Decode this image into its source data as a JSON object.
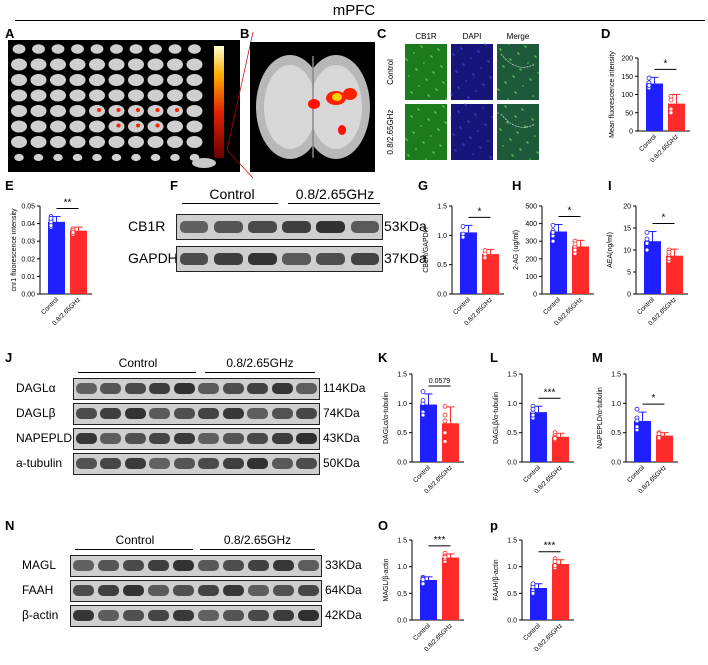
{
  "figure_title": "mPFC",
  "panels": {
    "A": "A",
    "B": "B",
    "C": "C",
    "D": "D",
    "E": "E",
    "F": "F",
    "G": "G",
    "H": "H",
    "I": "I",
    "J": "J",
    "K": "K",
    "L": "L",
    "M": "M",
    "N": "N",
    "O": "O",
    "P": "p"
  },
  "panel_c": {
    "col_headers": [
      "CB1R",
      "DAPI",
      "Merge"
    ],
    "row_labels": [
      "Control",
      "0.8/2.65GHz"
    ]
  },
  "blot_f": {
    "groups": [
      "Control",
      "0.8/2.65GHz"
    ],
    "rows": [
      {
        "label": "CB1R",
        "kda": "53KDa"
      },
      {
        "label": "GAPDH",
        "kda": "37KDa"
      }
    ]
  },
  "blot_j": {
    "groups": [
      "Control",
      "0.8/2.65GHz"
    ],
    "rows": [
      {
        "label": "DAGLα",
        "kda": "114KDa"
      },
      {
        "label": "DAGLβ",
        "kda": "74KDa"
      },
      {
        "label": "NAPEPLD",
        "kda": "43KDa"
      },
      {
        "label": "a-tubulin",
        "kda": "50KDa"
      }
    ]
  },
  "blot_n": {
    "groups": [
      "Control",
      "0.8/2.65GHz"
    ],
    "rows": [
      {
        "label": "MAGL",
        "kda": "33KDa"
      },
      {
        "label": "FAAH",
        "kda": "64KDa"
      },
      {
        "label": "β-actin",
        "kda": "42KDa"
      }
    ]
  },
  "colors": {
    "control": "#1f1fff",
    "treated": "#ff2a2a"
  },
  "chart_data": [
    {
      "id": "D",
      "type": "bar",
      "categories": [
        "Control",
        "0.8/2.65GHz"
      ],
      "values": [
        130,
        75
      ],
      "errors": [
        17,
        25
      ],
      "ylabel": "Mean fluorescence intensity",
      "ylim": [
        0,
        200
      ],
      "yticks": [
        0,
        50,
        100,
        150,
        200
      ],
      "significance": "*",
      "points": [
        [
          145,
          132,
          118,
          125
        ],
        [
          95,
          60,
          50,
          85
        ]
      ]
    },
    {
      "id": "E",
      "type": "bar",
      "categories": [
        "Control",
        "0.8/2.65GHz"
      ],
      "values": [
        0.041,
        0.036
      ],
      "errors": [
        0.003,
        0.002
      ],
      "ylabel": "cnr1 fluorescence intensity",
      "ylim": [
        0,
        0.05
      ],
      "yticks": [
        0.0,
        0.01,
        0.02,
        0.03,
        0.04,
        0.05
      ],
      "significance": "**",
      "points": [
        [
          0.044,
          0.04,
          0.038,
          0.042,
          0.039,
          0.041,
          0.043
        ],
        [
          0.037,
          0.035,
          0.036,
          0.034,
          0.037,
          0.036,
          0.035
        ]
      ]
    },
    {
      "id": "G",
      "type": "bar",
      "categories": [
        "Control",
        "0.8/2.65GHz"
      ],
      "values": [
        1.05,
        0.68
      ],
      "errors": [
        0.12,
        0.08
      ],
      "ylabel": "CB1R/GAPDH",
      "ylim": [
        0,
        1.5
      ],
      "yticks": [
        0.0,
        0.5,
        1.0,
        1.5
      ],
      "significance": "*",
      "points": [
        [
          1.15,
          1.02,
          0.97
        ],
        [
          0.74,
          0.62,
          0.68
        ]
      ]
    },
    {
      "id": "H",
      "type": "bar",
      "categories": [
        "Control",
        "0.8/2.65GHz"
      ],
      "values": [
        355,
        270
      ],
      "errors": [
        40,
        35
      ],
      "ylabel": "2-AG (ug/ml)",
      "ylim": [
        0,
        500
      ],
      "yticks": [
        0,
        100,
        200,
        300,
        400,
        500
      ],
      "significance": "*",
      "points": [
        [
          390,
          360,
          330,
          350,
          300
        ],
        [
          300,
          270,
          230,
          285,
          250
        ]
      ]
    },
    {
      "id": "I",
      "type": "bar",
      "categories": [
        "Control",
        "0.8/2.65GHz"
      ],
      "values": [
        12,
        8.7
      ],
      "errors": [
        2.2,
        1.5
      ],
      "ylabel": "AEA(ng/ml)",
      "ylim": [
        0,
        20
      ],
      "yticks": [
        0,
        5,
        10,
        15,
        20
      ],
      "significance": "*",
      "points": [
        [
          14,
          12,
          10,
          11.5,
          12.5
        ],
        [
          10,
          9,
          7.5,
          8,
          9.5
        ]
      ]
    },
    {
      "id": "K",
      "type": "bar",
      "categories": [
        "Control",
        "0.8/2.65GHz"
      ],
      "values": [
        0.98,
        0.66
      ],
      "errors": [
        0.18,
        0.28
      ],
      "ylabel": "DAGLα/α-tubulin",
      "ylim": [
        0,
        1.5
      ],
      "yticks": [
        0.0,
        0.5,
        1.0,
        1.5
      ],
      "significance": "0.0579",
      "points": [
        [
          1.2,
          1.0,
          0.85,
          0.8,
          1.05
        ],
        [
          0.95,
          0.8,
          0.5,
          0.35,
          0.7
        ]
      ]
    },
    {
      "id": "L",
      "type": "bar",
      "categories": [
        "Control",
        "0.8/2.65GHz"
      ],
      "values": [
        0.85,
        0.43
      ],
      "errors": [
        0.1,
        0.06
      ],
      "ylabel": "DAGLβ/α-tubulin",
      "ylim": [
        0,
        1.5
      ],
      "yticks": [
        0.0,
        0.5,
        1.0,
        1.5
      ],
      "significance": "***",
      "points": [
        [
          0.95,
          0.85,
          0.75,
          0.9,
          0.8
        ],
        [
          0.5,
          0.45,
          0.38,
          0.42,
          0.4
        ]
      ]
    },
    {
      "id": "M",
      "type": "bar",
      "categories": [
        "Control",
        "0.8/2.65GHz"
      ],
      "values": [
        0.7,
        0.45
      ],
      "errors": [
        0.15,
        0.05
      ],
      "ylabel": "NAPEPLD/α-tubulin",
      "ylim": [
        0,
        1.5
      ],
      "yticks": [
        0.0,
        0.5,
        1.0,
        1.5
      ],
      "significance": "*",
      "points": [
        [
          0.9,
          0.75,
          0.55,
          0.7,
          0.6
        ],
        [
          0.5,
          0.45,
          0.4,
          0.48,
          0.42
        ]
      ]
    },
    {
      "id": "O",
      "type": "bar",
      "categories": [
        "Control",
        "0.8/2.65GHz"
      ],
      "values": [
        0.75,
        1.17
      ],
      "errors": [
        0.06,
        0.07
      ],
      "ylabel": "MAGL/β-actin",
      "ylim": [
        0,
        1.5
      ],
      "yticks": [
        0.0,
        0.5,
        1.0,
        1.5
      ],
      "significance": "***",
      "points": [
        [
          0.8,
          0.72,
          0.68,
          0.78,
          0.76
        ],
        [
          1.25,
          1.2,
          1.1,
          1.15,
          1.18
        ]
      ]
    },
    {
      "id": "P",
      "type": "bar",
      "categories": [
        "Control",
        "0.8/2.65GHz"
      ],
      "values": [
        0.6,
        1.05
      ],
      "errors": [
        0.08,
        0.08
      ],
      "ylabel": "FAAH/β-actin",
      "ylim": [
        0,
        1.5
      ],
      "yticks": [
        0.0,
        0.5,
        1.0,
        1.5
      ],
      "significance": "***",
      "points": [
        [
          0.65,
          0.55,
          0.5,
          0.62,
          0.68
        ],
        [
          1.15,
          1.05,
          0.98,
          1.1,
          1.02
        ]
      ]
    }
  ]
}
